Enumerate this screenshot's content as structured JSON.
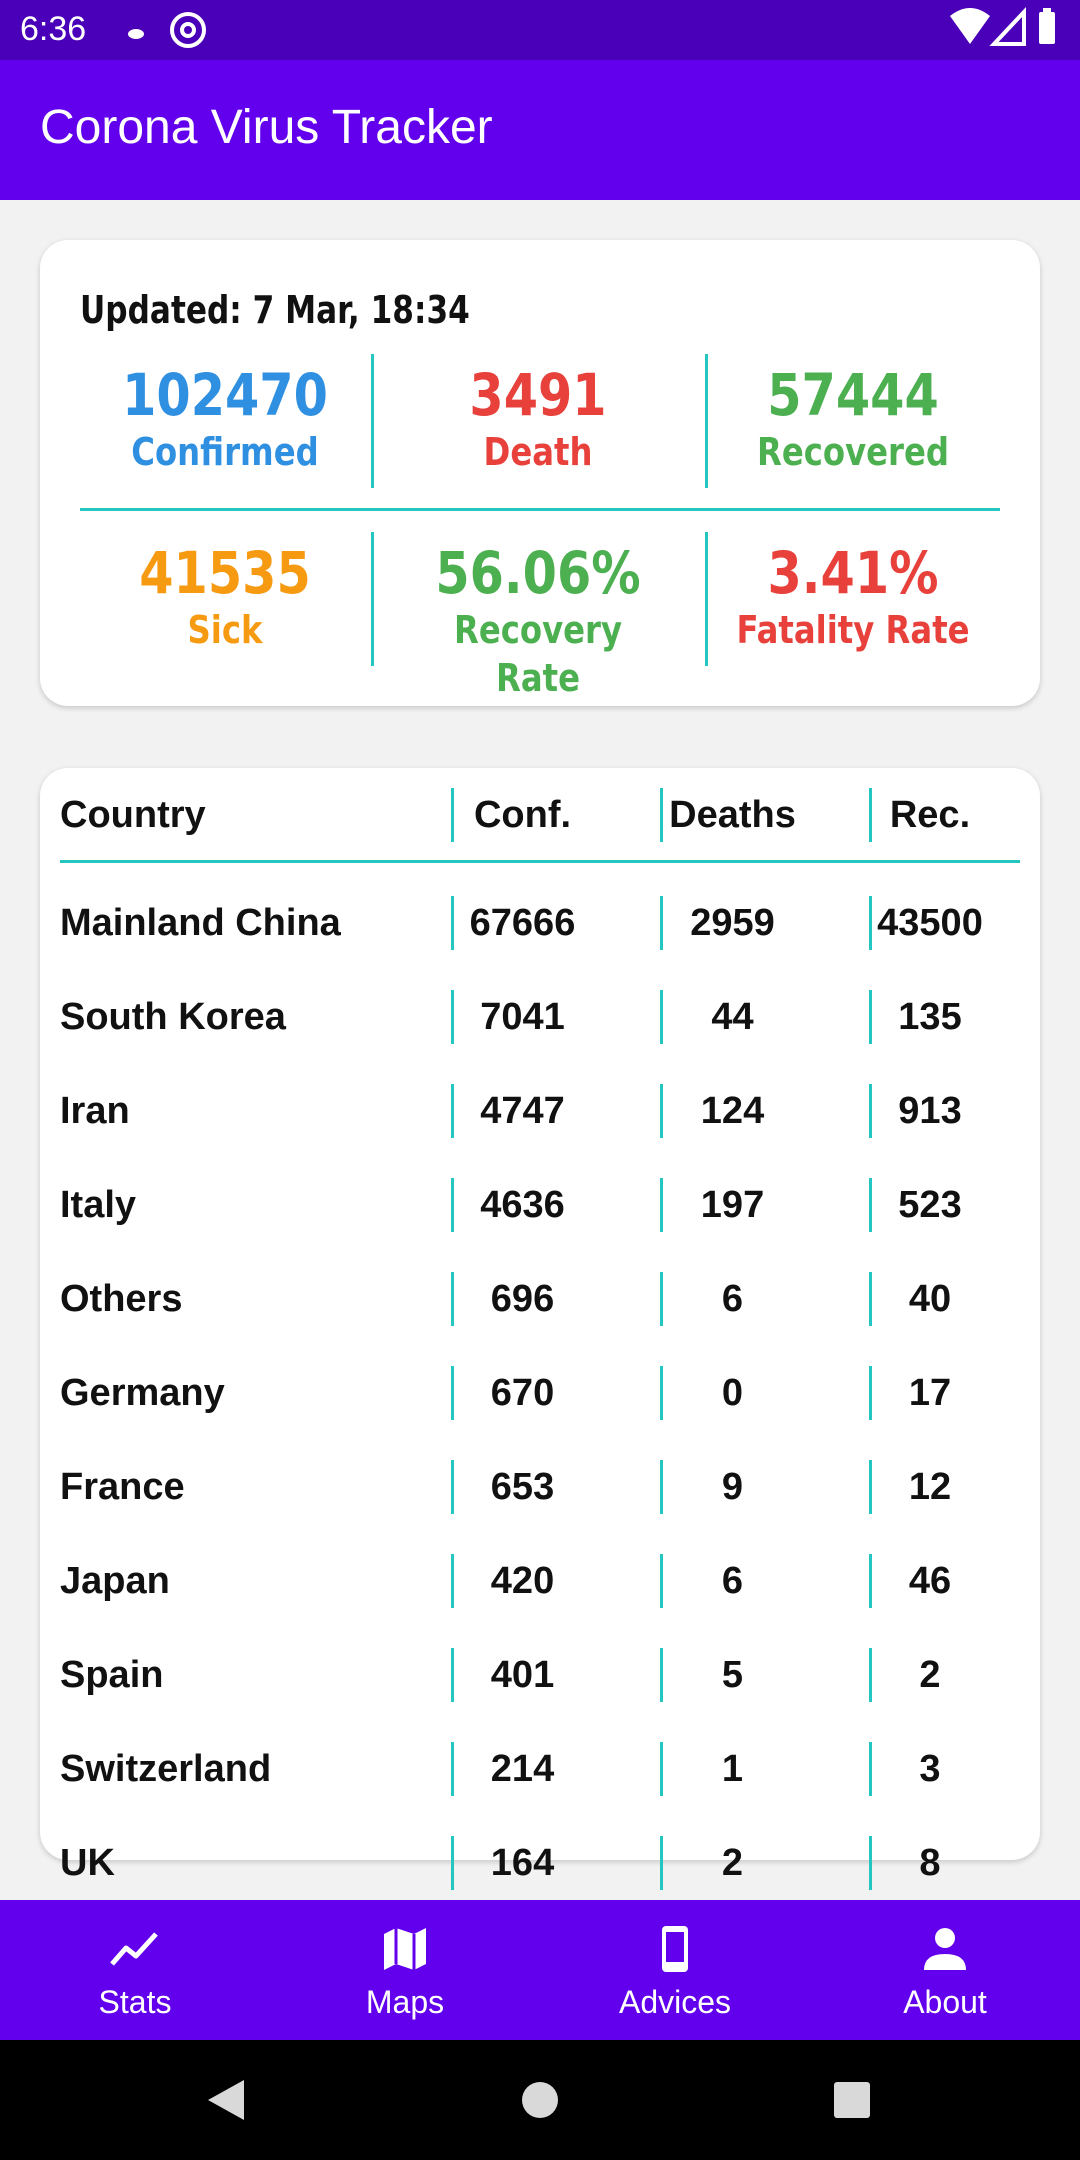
{
  "status_bar": {
    "time": "6:36"
  },
  "app_bar": {
    "title": "Corona Virus Tracker"
  },
  "summary": {
    "updated": "Updated: 7 Mar, 18:34",
    "confirmed": {
      "value": "102470",
      "label": "Confirmed",
      "color": "#2f8fe0"
    },
    "death": {
      "value": "3491",
      "label": "Death",
      "color": "#e8413c"
    },
    "recovered": {
      "value": "57444",
      "label": "Recovered",
      "color": "#4caf50"
    },
    "sick": {
      "value": "41535",
      "label": "Sick",
      "color": "#f59a11"
    },
    "recovery_rate": {
      "value": "56.06%",
      "label": "Recovery Rate",
      "color": "#4caf50"
    },
    "fatality_rate": {
      "value": "3.41%",
      "label": "Fatality Rate",
      "color": "#e8413c"
    }
  },
  "table": {
    "headers": [
      "Country",
      "Conf.",
      "Deaths",
      "Rec."
    ],
    "rows": [
      [
        "Mainland China",
        "67666",
        "2959",
        "43500"
      ],
      [
        "South Korea",
        "7041",
        "44",
        "135"
      ],
      [
        "Iran",
        "4747",
        "124",
        "913"
      ],
      [
        "Italy",
        "4636",
        "197",
        "523"
      ],
      [
        "Others",
        "696",
        "6",
        "40"
      ],
      [
        "Germany",
        "670",
        "0",
        "17"
      ],
      [
        "France",
        "653",
        "9",
        "12"
      ],
      [
        "Japan",
        "420",
        "6",
        "46"
      ],
      [
        "Spain",
        "401",
        "5",
        "2"
      ],
      [
        "Switzerland",
        "214",
        "1",
        "3"
      ],
      [
        "UK",
        "164",
        "2",
        "8"
      ]
    ]
  },
  "bottom_nav": {
    "items": [
      {
        "label": "Stats",
        "icon": "chart-line-icon"
      },
      {
        "label": "Maps",
        "icon": "map-icon"
      },
      {
        "label": "Advices",
        "icon": "phone-icon"
      },
      {
        "label": "About",
        "icon": "person-icon"
      }
    ]
  },
  "colors": {
    "primary": "#6200ee",
    "status_bar": "#4a00b8",
    "divider": "#26c6c0"
  }
}
